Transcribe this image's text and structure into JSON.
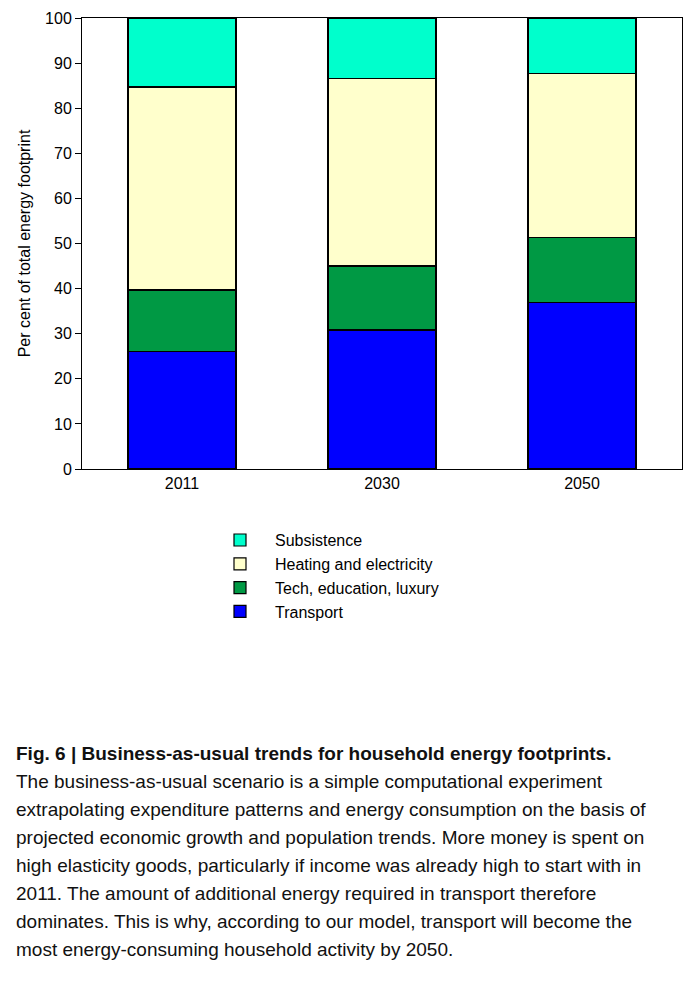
{
  "chart_data": {
    "type": "bar",
    "stacked": true,
    "title": "Fig. 6 | Business-as-usual trends for household energy footprints.",
    "subtitle": "The business-as-usual scenario is a simple computational experiment extrapolating expenditure patterns and energy consumption on the basis of projected economic growth and population trends. More money is spent on high elasticity goods, particularly if income was already high to start with in 2011. The amount of additional energy required in transport therefore dominates. This is why, according to our model, transport will become the most energy-consuming household activity by 2050.",
    "y_label": "Per cent of total energy footprint",
    "categories": [
      "2011",
      "2030",
      "2050"
    ],
    "series": [
      {
        "name": "Transport",
        "color": "#0000ff",
        "values": [
          26,
          30.8,
          37
        ]
      },
      {
        "name": "Tech, education, luxury",
        "color": "#009944",
        "values": [
          13.7,
          14.2,
          14.3
        ]
      },
      {
        "name": "Heating and electricity",
        "color": "#ffffcc",
        "values": [
          45,
          41.5,
          36.4
        ]
      },
      {
        "name": "Subsistence",
        "color": "#00ffcc",
        "values": [
          15.3,
          13.5,
          12.3
        ]
      }
    ],
    "ylim": [
      0,
      100
    ],
    "yticks": [
      0,
      10,
      20,
      30,
      40,
      50,
      60,
      70,
      80,
      90,
      100
    ],
    "grid": false,
    "legend": "bottom"
  }
}
